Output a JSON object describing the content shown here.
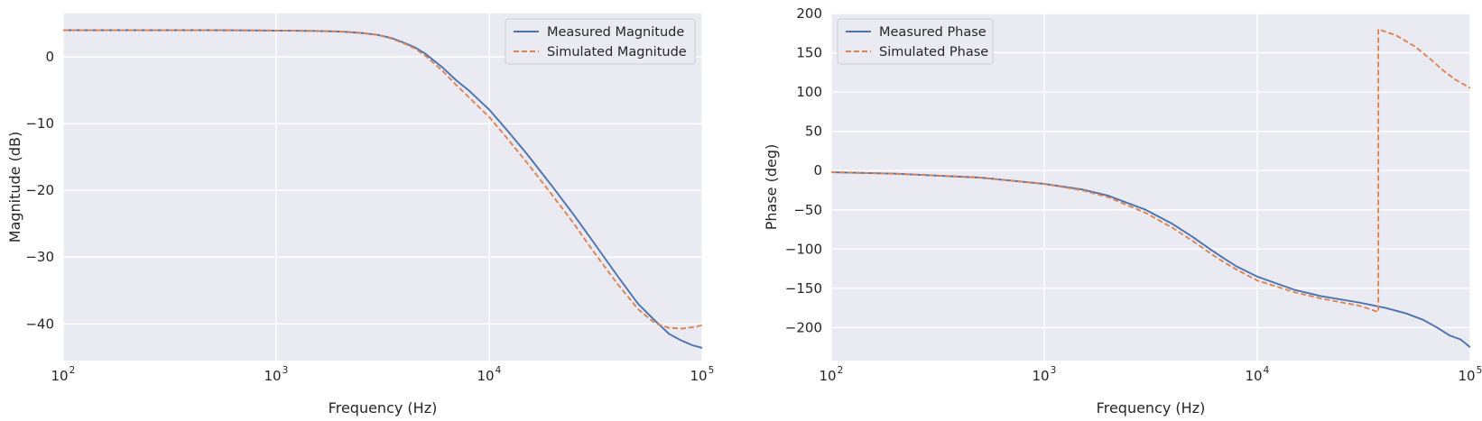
{
  "colors": {
    "measured": "#4c72b0",
    "simulated": "#dd8452"
  },
  "chart_data": [
    {
      "type": "line",
      "xscale": "log",
      "xlabel": "Frequency (Hz)",
      "ylabel": "Magnitude (dB)",
      "xlim": [
        100,
        100000
      ],
      "ylim": [
        -45.5,
        6.5
      ],
      "xticks": [
        {
          "base": "10",
          "exp": "2",
          "value": 100
        },
        {
          "base": "10",
          "exp": "3",
          "value": 1000
        },
        {
          "base": "10",
          "exp": "4",
          "value": 10000
        },
        {
          "base": "10",
          "exp": "5",
          "value": 100000
        }
      ],
      "yticks": [
        {
          "label": "0",
          "value": 0
        },
        {
          "label": "−10",
          "value": -10
        },
        {
          "label": "−20",
          "value": -20
        },
        {
          "label": "−30",
          "value": -30
        },
        {
          "label": "−40",
          "value": -40
        }
      ],
      "legend": "upper-right",
      "grid": true,
      "series": [
        {
          "name": "Measured Magnitude",
          "style": "solid",
          "x": [
            100,
            200,
            500,
            1000,
            1500,
            2000,
            2500,
            3000,
            3500,
            4000,
            4500,
            5000,
            6000,
            7000,
            8000,
            10000,
            12000,
            15000,
            20000,
            25000,
            30000,
            40000,
            50000,
            60000,
            70000,
            80000,
            90000,
            100000
          ],
          "y": [
            4.0,
            4.0,
            4.0,
            3.95,
            3.9,
            3.8,
            3.6,
            3.3,
            2.8,
            2.1,
            1.4,
            0.5,
            -1.5,
            -3.5,
            -5.0,
            -7.9,
            -10.8,
            -14.5,
            -19.6,
            -23.7,
            -27.2,
            -32.8,
            -37.0,
            -39.5,
            -41.5,
            -42.5,
            -43.2,
            -43.6
          ]
        },
        {
          "name": "Simulated Magnitude",
          "style": "dashed",
          "x": [
            100,
            200,
            500,
            1000,
            1500,
            2000,
            2500,
            3000,
            3500,
            4000,
            4500,
            5000,
            6000,
            7000,
            8000,
            10000,
            12000,
            15000,
            20000,
            25000,
            30000,
            40000,
            50000,
            60000,
            70000,
            80000,
            90000,
            100000
          ],
          "y": [
            4.0,
            4.0,
            4.0,
            3.95,
            3.9,
            3.8,
            3.6,
            3.3,
            2.7,
            2.0,
            1.2,
            0.2,
            -2.0,
            -4.2,
            -6.0,
            -9.0,
            -12.0,
            -15.8,
            -20.9,
            -25.0,
            -28.6,
            -34.0,
            -37.8,
            -39.9,
            -40.6,
            -40.7,
            -40.5,
            -40.2
          ]
        }
      ]
    },
    {
      "type": "line",
      "xscale": "log",
      "xlabel": "Frequency (Hz)",
      "ylabel": "Phase (deg)",
      "xlim": [
        100,
        100000
      ],
      "ylim": [
        -242,
        200
      ],
      "xticks": [
        {
          "base": "10",
          "exp": "2",
          "value": 100
        },
        {
          "base": "10",
          "exp": "3",
          "value": 1000
        },
        {
          "base": "10",
          "exp": "4",
          "value": 10000
        },
        {
          "base": "10",
          "exp": "5",
          "value": 100000
        }
      ],
      "yticks": [
        {
          "label": "200",
          "value": 200
        },
        {
          "label": "150",
          "value": 150
        },
        {
          "label": "100",
          "value": 100
        },
        {
          "label": "50",
          "value": 50
        },
        {
          "label": "0",
          "value": 0
        },
        {
          "label": "−50",
          "value": -50
        },
        {
          "label": "−100",
          "value": -100
        },
        {
          "label": "−150",
          "value": -150
        },
        {
          "label": "−200",
          "value": -200
        }
      ],
      "legend": "upper-left",
      "grid": true,
      "series": [
        {
          "name": "Measured Phase",
          "style": "solid",
          "x": [
            100,
            200,
            500,
            1000,
            1500,
            2000,
            3000,
            4000,
            5000,
            6000,
            7000,
            8000,
            10000,
            15000,
            20000,
            30000,
            40000,
            50000,
            60000,
            70000,
            80000,
            90000,
            100000
          ],
          "y": [
            -2,
            -4,
            -9,
            -17,
            -24,
            -32,
            -50,
            -68,
            -85,
            -100,
            -112,
            -122,
            -135,
            -152,
            -160,
            -168,
            -175,
            -182,
            -190,
            -200,
            -210,
            -215,
            -225
          ]
        },
        {
          "name": "Simulated Phase",
          "style": "dashed",
          "x": [
            100,
            200,
            500,
            1000,
            1500,
            2000,
            3000,
            4000,
            5000,
            6000,
            7000,
            8000,
            10000,
            15000,
            20000,
            30000,
            37000,
            37000,
            45000,
            55000,
            65000,
            75000,
            85000,
            100000
          ],
          "y": [
            -2,
            -4,
            -9,
            -17,
            -25,
            -34,
            -54,
            -73,
            -90,
            -105,
            -117,
            -126,
            -140,
            -155,
            -163,
            -172,
            -180,
            180,
            172,
            158,
            142,
            127,
            116,
            105
          ]
        }
      ]
    }
  ]
}
